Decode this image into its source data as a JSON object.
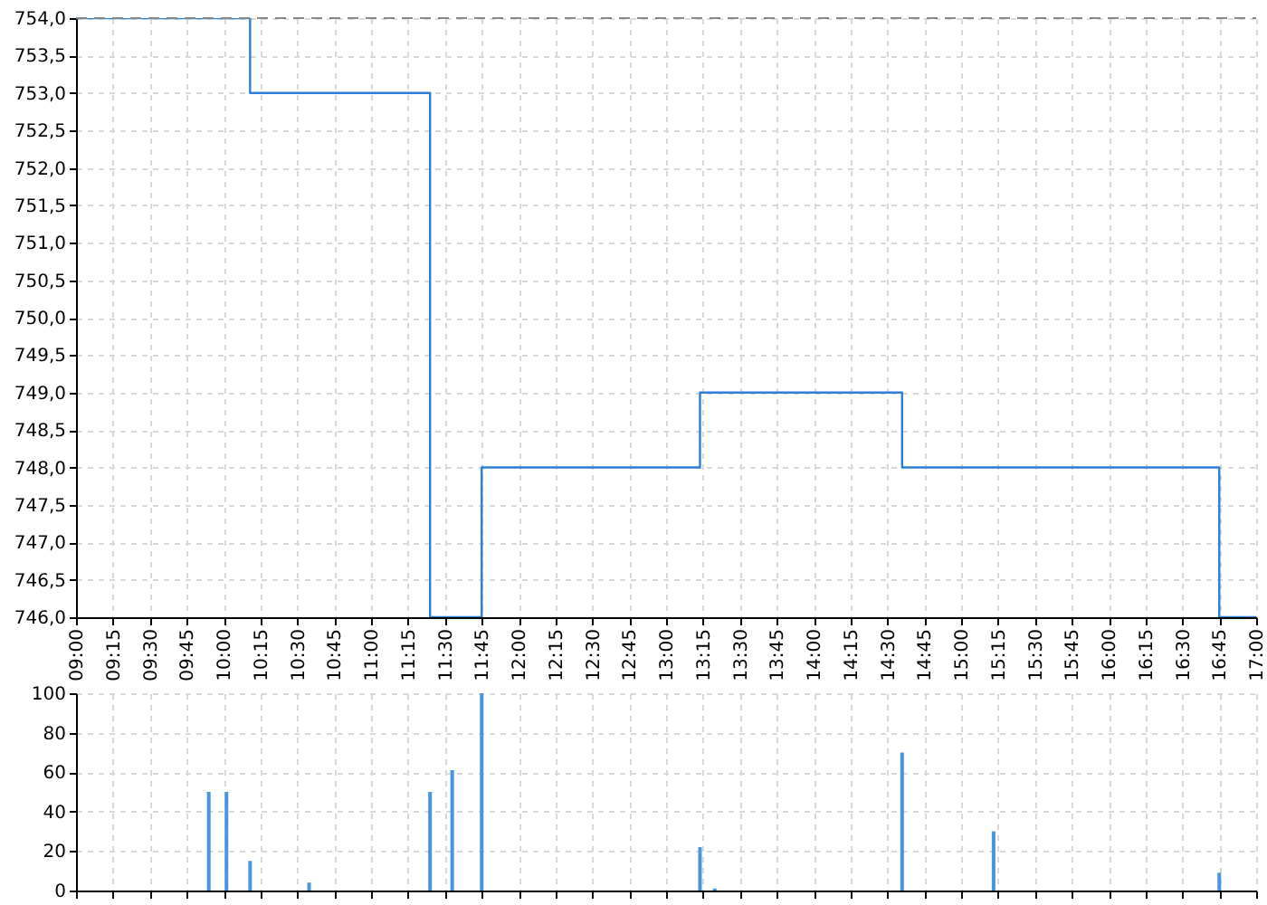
{
  "chart_data": [
    {
      "type": "step",
      "x": [
        9,
        10.18,
        11.4,
        11.75,
        13.23,
        14.6,
        16.75,
        17
      ],
      "series": [
        {
          "color": "#2b7fd6",
          "values": [
            754,
            753,
            746,
            748,
            749,
            748,
            746,
            746
          ]
        }
      ],
      "xlim": [
        9,
        17
      ],
      "xticks": [
        {
          "value": 9,
          "label": "09:00"
        },
        {
          "value": 9.25,
          "label": "09:15"
        },
        {
          "value": 9.5,
          "label": "09:30"
        },
        {
          "value": 9.75,
          "label": "09:45"
        },
        {
          "value": 10,
          "label": "10:00"
        },
        {
          "value": 10.25,
          "label": "10:15"
        },
        {
          "value": 10.5,
          "label": "10:30"
        },
        {
          "value": 10.75,
          "label": "10:45"
        },
        {
          "value": 11,
          "label": "11:00"
        },
        {
          "value": 11.25,
          "label": "11:15"
        },
        {
          "value": 11.5,
          "label": "11:30"
        },
        {
          "value": 11.75,
          "label": "11:45"
        },
        {
          "value": 12,
          "label": "12:00"
        },
        {
          "value": 12.25,
          "label": "12:15"
        },
        {
          "value": 12.5,
          "label": "12:30"
        },
        {
          "value": 12.75,
          "label": "12:45"
        },
        {
          "value": 13,
          "label": "13:00"
        },
        {
          "value": 13.25,
          "label": "13:15"
        },
        {
          "value": 13.5,
          "label": "13:30"
        },
        {
          "value": 13.75,
          "label": "13:45"
        },
        {
          "value": 14,
          "label": "14:00"
        },
        {
          "value": 14.25,
          "label": "14:15"
        },
        {
          "value": 14.5,
          "label": "14:30"
        },
        {
          "value": 14.75,
          "label": "14:45"
        },
        {
          "value": 15,
          "label": "15:00"
        },
        {
          "value": 15.25,
          "label": "15:15"
        },
        {
          "value": 15.5,
          "label": "15:30"
        },
        {
          "value": 15.75,
          "label": "15:45"
        },
        {
          "value": 16,
          "label": "16:00"
        },
        {
          "value": 16.25,
          "label": "16:15"
        },
        {
          "value": 16.5,
          "label": "16:30"
        },
        {
          "value": 16.75,
          "label": "16:45"
        },
        {
          "value": 17,
          "label": "17:00"
        }
      ],
      "ylim": [
        746,
        754
      ],
      "yticks": [
        {
          "value": 746,
          "label": "746,0"
        },
        {
          "value": 746.5,
          "label": "746,5"
        },
        {
          "value": 747,
          "label": "747,0"
        },
        {
          "value": 747.5,
          "label": "747,5"
        },
        {
          "value": 748,
          "label": "748,0"
        },
        {
          "value": 748.5,
          "label": "748,5"
        },
        {
          "value": 749,
          "label": "749,0"
        },
        {
          "value": 749.5,
          "label": "749,5"
        },
        {
          "value": 750,
          "label": "750,0"
        },
        {
          "value": 750.5,
          "label": "750,5"
        },
        {
          "value": 751,
          "label": "751,0"
        },
        {
          "value": 751.5,
          "label": "751,5"
        },
        {
          "value": 752,
          "label": "752,0"
        },
        {
          "value": 752.5,
          "label": "752,5"
        },
        {
          "value": 753,
          "label": "753,0"
        },
        {
          "value": 753.5,
          "label": "753,5"
        },
        {
          "value": 754,
          "label": "754,0"
        }
      ],
      "ref_lines": [
        {
          "axis": "y",
          "value": 754,
          "color": "#888888",
          "line_style": "dashed"
        }
      ],
      "grid": true
    },
    {
      "type": "bar",
      "x": [
        9.9,
        10.02,
        10.18,
        10.58,
        11.4,
        11.55,
        11.75,
        13.23,
        13.33,
        14.6,
        15.22,
        16.75
      ],
      "values": [
        50,
        50,
        15,
        4,
        50,
        61,
        100,
        22,
        1,
        70,
        30,
        9
      ],
      "color": "#4a94e0",
      "xlim": [
        9,
        17
      ],
      "xticks": [
        9,
        9.25,
        9.5,
        9.75,
        10,
        10.25,
        10.5,
        10.75,
        11,
        11.25,
        11.5,
        11.75,
        12,
        12.25,
        12.5,
        12.75,
        13,
        13.25,
        13.5,
        13.75,
        14,
        14.25,
        14.5,
        14.75,
        15,
        15.25,
        15.5,
        15.75,
        16,
        16.25,
        16.5,
        16.75,
        17
      ],
      "ylim": [
        0,
        100
      ],
      "yticks": [
        0,
        20,
        40,
        60,
        80,
        100
      ],
      "tick_labels": "y",
      "grid": true
    }
  ]
}
